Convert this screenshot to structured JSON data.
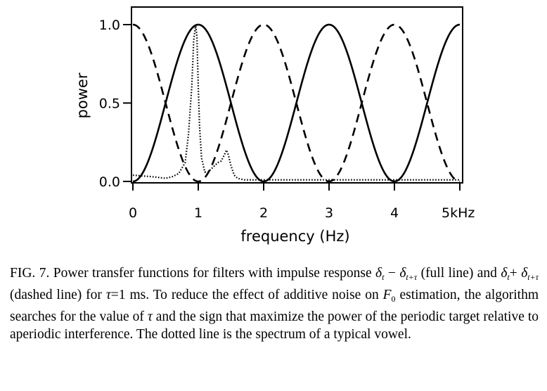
{
  "chart_data": {
    "type": "line",
    "xlabel": "frequency (Hz)",
    "ylabel": "power",
    "xlim": [
      -0.05,
      5.05
    ],
    "ylim": [
      0,
      1.0
    ],
    "x_ticks": [
      {
        "value": 0,
        "label": "0"
      },
      {
        "value": 1,
        "label": "1"
      },
      {
        "value": 2,
        "label": "2"
      },
      {
        "value": 3,
        "label": "3"
      },
      {
        "value": 4,
        "label": "4"
      },
      {
        "value": 5,
        "label": "5kHz"
      }
    ],
    "y_ticks": [
      {
        "value": 0.0,
        "label": "0.0"
      },
      {
        "value": 0.5,
        "label": "0.5"
      },
      {
        "value": 1.0,
        "label": "1.0"
      }
    ],
    "grid": false,
    "legend": "none",
    "series": [
      {
        "style": "solid",
        "formula": "sin^2(pi*f/2)",
        "x": [
          0,
          0.25,
          0.5,
          0.75,
          1,
          1.25,
          1.5,
          1.75,
          2,
          2.25,
          2.5,
          2.75,
          3,
          3.25,
          3.5,
          3.75,
          4,
          4.25,
          4.5,
          4.75,
          5
        ],
        "y": [
          0,
          0.15,
          0.5,
          0.85,
          1,
          0.85,
          0.5,
          0.15,
          0,
          0.15,
          0.5,
          0.85,
          1,
          0.85,
          0.5,
          0.15,
          0,
          0.15,
          0.5,
          0.85,
          1
        ]
      },
      {
        "style": "dashed",
        "formula": "cos^2(pi*f/2)",
        "x": [
          0,
          0.25,
          0.5,
          0.75,
          1,
          1.25,
          1.5,
          1.75,
          2,
          2.25,
          2.5,
          2.75,
          3,
          3.25,
          3.5,
          3.75,
          4,
          4.25,
          4.5,
          4.75,
          5
        ],
        "y": [
          1,
          0.85,
          0.5,
          0.15,
          0,
          0.15,
          0.5,
          0.85,
          1,
          0.85,
          0.5,
          0.15,
          0,
          0.15,
          0.5,
          0.85,
          1,
          0.85,
          0.5,
          0.15,
          0
        ]
      },
      {
        "style": "dotted",
        "x": [
          0,
          0.3,
          0.5,
          0.6,
          0.7,
          0.8,
          0.85,
          0.9,
          0.93,
          0.96,
          0.98,
          1.0,
          1.02,
          1.05,
          1.1,
          1.15,
          1.2,
          1.3,
          1.35,
          1.4,
          1.43,
          1.46,
          1.5,
          1.55,
          1.6,
          1.7,
          2.0,
          2.5,
          3.0,
          4.0,
          5.0
        ],
        "y": [
          0.04,
          0.03,
          0.02,
          0.03,
          0.05,
          0.12,
          0.3,
          0.6,
          0.9,
          1.0,
          0.92,
          0.6,
          0.35,
          0.15,
          0.06,
          0.06,
          0.08,
          0.12,
          0.13,
          0.17,
          0.2,
          0.17,
          0.1,
          0.04,
          0.02,
          0.01,
          0.01,
          0.01,
          0.01,
          0.01,
          0.01
        ]
      }
    ]
  },
  "caption": {
    "fig_label": "FIG. 7.",
    "p1": " Power transfer functions for filters with impulse response ",
    "delta": "δ",
    "sub_t": "t",
    "minus": " − ",
    "sub_t_tau": "t+τ",
    "p2": " (full line) and ",
    "plus": "+ ",
    "p3": " (dashed line) for ",
    "tau": "τ",
    "p4": "=1 ms. To reduce the effect of additive noise on ",
    "F": "F",
    "sub_0": "0",
    "p5": " estimation, the algorithm searches for the value of ",
    "p6": " and the sign that maximize the power of the periodic target relative to aperiodic interference. The dotted line is the spectrum of a typical vowel."
  }
}
